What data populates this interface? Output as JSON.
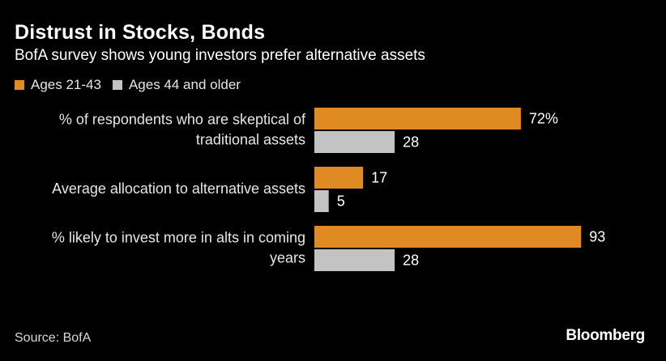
{
  "chart_data": {
    "type": "bar",
    "orientation": "horizontal",
    "title": "Distrust in Stocks, Bonds",
    "subtitle": "BofA survey shows young investors prefer alternative assets",
    "categories": [
      [
        "% of respondents who are skeptical of",
        "traditional assets"
      ],
      [
        "Average allocation to alternative assets"
      ],
      [
        "% likely to invest more in alts in coming",
        "years"
      ]
    ],
    "series": [
      {
        "name": "Ages 21-43",
        "color": "#e08a24",
        "values": [
          72,
          17,
          93
        ],
        "labels": [
          "72%",
          "17",
          "93"
        ]
      },
      {
        "name": "Ages 44 and older",
        "color": "#c3c3c3",
        "values": [
          28,
          5,
          28
        ],
        "labels": [
          "28",
          "5",
          "28"
        ]
      }
    ],
    "xlim": [
      0,
      100
    ],
    "grid": false,
    "legend": "top-left"
  },
  "source": "Source: BofA",
  "brand": "Bloomberg"
}
